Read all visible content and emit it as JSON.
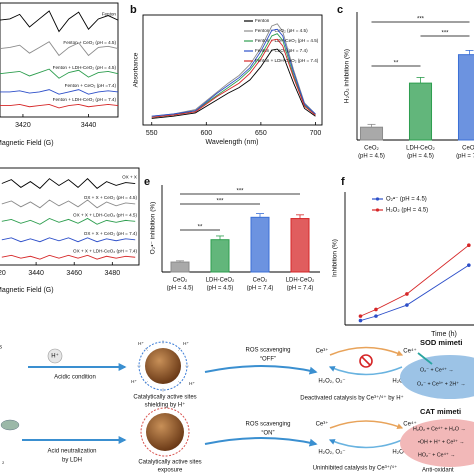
{
  "chart_data": [
    {
      "type": "line",
      "xlabel": "Magnetic Field (G)",
      "legend": "inline",
      "xlim": [
        3413,
        3449
      ],
      "ylim": [
        0,
        100
      ],
      "xticks": [
        3420,
        3440
      ],
      "x": [
        3413,
        3416,
        3419,
        3422,
        3425,
        3428,
        3431,
        3434,
        3437,
        3440,
        3443,
        3446,
        3449
      ],
      "series": [
        {
          "name": "Fenton",
          "color": "#000000",
          "values": [
            85,
            86,
            90,
            79,
            86,
            93,
            75,
            86,
            92,
            77,
            86,
            89,
            85
          ]
        },
        {
          "name": "Fenton + CeO₂ (pH = 4.5)",
          "color": "#8c8c8c",
          "values": [
            60,
            61,
            63,
            56,
            61,
            66,
            54,
            61,
            65,
            54,
            61,
            62,
            60
          ]
        },
        {
          "name": "Fenton + LDH-CeO₂ (pH = 4.5)",
          "color": "#2e9e4f",
          "values": [
            38,
            39,
            40,
            36,
            39,
            42,
            34,
            39,
            41,
            35,
            39,
            40,
            38
          ]
        },
        {
          "name": "Fenton + CeO₂ (pH =7.4)",
          "color": "#2d4fc9",
          "values": [
            22,
            22,
            23,
            21,
            22,
            24,
            20,
            22,
            24,
            20,
            22,
            23,
            22
          ]
        },
        {
          "name": "Fenton + LDH-CeO₂ (pH = 7.4)",
          "color": "#d62728",
          "values": [
            10,
            10,
            11,
            9,
            10,
            11,
            8,
            10,
            11,
            9,
            10,
            11,
            10
          ]
        }
      ]
    },
    {
      "type": "line",
      "panel": "b",
      "xlabel": "Wavelength (nm)",
      "ylabel": "Absorbance",
      "legend": "upper right",
      "xlim": [
        542,
        706
      ],
      "ylim": [
        0,
        1
      ],
      "xticks": [
        550,
        600,
        650,
        700
      ],
      "x": [
        550,
        570,
        590,
        610,
        620,
        630,
        640,
        650,
        660,
        665,
        670,
        680,
        690,
        700
      ],
      "series": [
        {
          "name": "Fenton",
          "color": "#000000",
          "values": [
            0.06,
            0.08,
            0.11,
            0.23,
            0.29,
            0.34,
            0.41,
            0.53,
            0.68,
            0.69,
            0.64,
            0.38,
            0.15,
            0.08
          ]
        },
        {
          "name": "Fenton + CeO₂ (pH = 4.5)",
          "color": "#8c8c8c",
          "values": [
            0.08,
            0.1,
            0.14,
            0.3,
            0.38,
            0.45,
            0.55,
            0.7,
            0.9,
            0.92,
            0.85,
            0.5,
            0.2,
            0.1
          ]
        },
        {
          "name": "Fenton + LDH-CeO₂ (pH = 4.5)",
          "color": "#2e9e4f",
          "values": [
            0.07,
            0.09,
            0.13,
            0.27,
            0.34,
            0.41,
            0.5,
            0.63,
            0.81,
            0.83,
            0.77,
            0.45,
            0.18,
            0.09
          ]
        },
        {
          "name": "Fenton + CeO₂ (pH = 7.4)",
          "color": "#2d4fc9",
          "values": [
            0.08,
            0.1,
            0.13,
            0.29,
            0.36,
            0.43,
            0.52,
            0.67,
            0.86,
            0.87,
            0.81,
            0.48,
            0.19,
            0.1
          ]
        },
        {
          "name": "Fenton + LDH-CeO₂ (pH = 7.4)",
          "color": "#d62728",
          "values": [
            0.07,
            0.09,
            0.12,
            0.26,
            0.32,
            0.38,
            0.47,
            0.6,
            0.77,
            0.78,
            0.72,
            0.43,
            0.17,
            0.09
          ]
        }
      ]
    },
    {
      "type": "bar",
      "panel": "c",
      "ylabel": "H₂O₂ inhibition (%)",
      "ylim": [
        0,
        90
      ],
      "categories": [
        [
          "CeO₂",
          "(pH = 4.5)"
        ],
        [
          "LDH-CeO₂",
          "(pH = 4.5)"
        ],
        [
          "CeO₂",
          "(pH = 7.4)"
        ]
      ],
      "values": [
        9,
        40,
        60
      ],
      "errors": [
        2,
        4,
        3
      ],
      "colors": [
        "#8c8c8c",
        "#2e9e4f",
        "#3b6fd6"
      ],
      "significance": [
        "***",
        "***",
        "**"
      ]
    },
    {
      "type": "line",
      "xlabel": "Magnetic Field (G)",
      "legend": "inline",
      "xlim": [
        3420,
        3494
      ],
      "ylim": [
        0,
        100
      ],
      "xticks": [
        3420,
        3440,
        3460,
        3480
      ],
      "x": [
        3422,
        3427,
        3432,
        3437,
        3442,
        3447,
        3452,
        3457,
        3462,
        3467,
        3472,
        3477,
        3482,
        3487,
        3492
      ],
      "series": [
        {
          "name": "OX + X",
          "color": "#000000",
          "values": [
            84,
            88,
            80,
            86,
            79,
            89,
            82,
            88,
            80,
            89,
            79,
            86,
            82,
            85,
            84
          ]
        },
        {
          "name": "OX + X + CeO₂ (pH = 4.5)",
          "color": "#8c8c8c",
          "values": [
            63,
            66,
            60,
            65,
            59,
            67,
            61,
            66,
            60,
            67,
            59,
            65,
            61,
            64,
            63
          ]
        },
        {
          "name": "OX + X + LDH-CeO₂ (pH = 4.5)",
          "color": "#2e9e4f",
          "values": [
            45,
            47,
            43,
            46,
            42,
            48,
            44,
            47,
            43,
            48,
            42,
            46,
            44,
            46,
            45
          ]
        },
        {
          "name": "OX + X + CeO₂ (pH = 7.4)",
          "color": "#2d4fc9",
          "values": [
            26,
            28,
            24,
            27,
            24,
            28,
            25,
            28,
            24,
            28,
            24,
            27,
            25,
            27,
            26
          ]
        },
        {
          "name": "OX + X + LDH-CeO₂ (pH = 7.4)",
          "color": "#d62728",
          "values": [
            8,
            10,
            7,
            9,
            6,
            10,
            7,
            10,
            7,
            10,
            6,
            9,
            7,
            9,
            8
          ]
        }
      ]
    },
    {
      "type": "bar",
      "panel": "e",
      "ylabel": "O₂•⁻ inhibition (%)",
      "ylim": [
        0,
        70
      ],
      "categories": [
        [
          "CeO₂",
          "(pH = 4.5)"
        ],
        [
          "LDH-CeO₂",
          "(pH = 4.5)"
        ],
        [
          "CeO₂",
          "(pH = 7.4)"
        ],
        [
          "LDH-CeO₂",
          "(pH = 7.4)"
        ]
      ],
      "values": [
        8,
        26,
        44,
        43
      ],
      "errors": [
        1,
        3,
        3,
        3
      ],
      "colors": [
        "#8c8c8c",
        "#2e9e4f",
        "#3b6fd6",
        "#d62728"
      ],
      "significance": [
        "***",
        "***",
        "**"
      ]
    },
    {
      "type": "line",
      "panel": "f",
      "xlabel": "Time (h)",
      "ylabel": "Inhibition (%)",
      "legend": "upper left",
      "markers": true,
      "xlim": [
        0,
        50
      ],
      "ylim": [
        0,
        60
      ],
      "x": [
        6,
        12,
        24,
        48
      ],
      "series": [
        {
          "name": "O₂•⁻ (pH = 4.5)",
          "color": "#2d4fc9",
          "values": [
            2,
            4,
            9,
            27
          ]
        },
        {
          "name": "H₂O₂ (pH = 4.5)",
          "color": "#d62728",
          "values": [
            4,
            7,
            14,
            36
          ]
        }
      ]
    }
  ],
  "scheme": {
    "top": {
      "edge": "s",
      "ion": "H⁺",
      "condition": [
        "Acidic condition"
      ],
      "ros": "ROS scavenging",
      "state": "“OFF”",
      "sites": [
        "Catalytically active sites",
        "shielding by H⁺"
      ],
      "ce3": "Ce³⁺",
      "ce4": "Ce⁴⁺",
      "reactants": "H₂O₂, O₂⁻",
      "products": "H₂O + O₂",
      "catalysis": "Deactivated catalysis by Ce³⁺/⁴⁺ by H⁺",
      "mimetic": "SOD mimeti",
      "reactions": [
        "O₂⁻ + Ce⁴⁺ →",
        "O₂⁻ + Ce³⁺ + 2H⁺ →"
      ]
    },
    "bottom": {
      "edge": "₂",
      "condition": [
        "Acid neutralization",
        "by LDH"
      ],
      "ros": "ROS scavenging",
      "state": "“ON”",
      "sites": [
        "Catalytically active sites",
        "exposure"
      ],
      "ce3": "Ce³⁺",
      "ce4": "Ce⁴⁺",
      "reactants": "H₂O₂, O₂⁻",
      "products": "H₂O + O₂",
      "catalysis": "Uninhibited catalysis by Ce³⁺/⁴⁺",
      "mimetic": "CAT mimeti",
      "reactions": [
        "H₂O₂ + Ce⁴⁺ + H₂O →",
        "•OH + H⁺ + Ce³⁺ →",
        "HO₂⁻ + Ce⁴⁺ →"
      ],
      "note": "Anti-oxidant"
    }
  }
}
